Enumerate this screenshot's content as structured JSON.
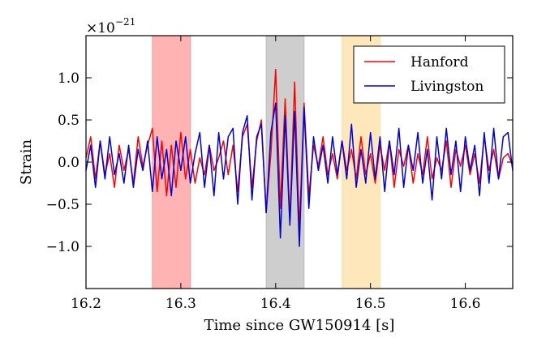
{
  "chart_data": {
    "type": "line",
    "title": "",
    "xlabel": "Time since GW150914 [s]",
    "ylabel": "Strain",
    "offset_label": "×10",
    "offset_exponent": "−21",
    "xlim": [
      16.2,
      16.65
    ],
    "ylim": [
      -1.5,
      1.5
    ],
    "xticks": [
      16.2,
      16.3,
      16.4,
      16.5,
      16.6
    ],
    "xtick_labels": [
      "16.2",
      "16.3",
      "16.4",
      "16.5",
      "16.6"
    ],
    "yticks": [
      -1.0,
      -0.5,
      0.0,
      0.5,
      1.0
    ],
    "ytick_labels": [
      "−1.0",
      "−0.5",
      "0.0",
      "0.5",
      "1.0"
    ],
    "grid": false,
    "legend_position": "top-right",
    "shaded_regions": [
      {
        "start": 16.27,
        "end": 16.31,
        "color": "#ff9999"
      },
      {
        "start": 16.39,
        "end": 16.43,
        "color": "#bdbdbd"
      },
      {
        "start": 16.47,
        "end": 16.51,
        "color": "#ffdfa6"
      }
    ],
    "series": [
      {
        "name": "Hanford",
        "color": "#ff0000",
        "x": [
          16.2,
          16.205,
          16.21,
          16.215,
          16.22,
          16.225,
          16.23,
          16.235,
          16.24,
          16.245,
          16.25,
          16.255,
          16.26,
          16.265,
          16.27,
          16.275,
          16.28,
          16.285,
          16.29,
          16.295,
          16.3,
          16.305,
          16.31,
          16.315,
          16.32,
          16.325,
          16.33,
          16.335,
          16.34,
          16.345,
          16.35,
          16.355,
          16.36,
          16.365,
          16.37,
          16.375,
          16.38,
          16.385,
          16.39,
          16.395,
          16.4,
          16.405,
          16.41,
          16.415,
          16.42,
          16.425,
          16.43,
          16.435,
          16.44,
          16.445,
          16.45,
          16.455,
          16.46,
          16.465,
          16.47,
          16.475,
          16.48,
          16.485,
          16.49,
          16.495,
          16.5,
          16.505,
          16.51,
          16.515,
          16.52,
          16.525,
          16.53,
          16.535,
          16.54,
          16.545,
          16.55,
          16.555,
          16.56,
          16.565,
          16.57,
          16.575,
          16.58,
          16.585,
          16.59,
          16.595,
          16.6,
          16.605,
          16.61,
          16.615,
          16.62,
          16.625,
          16.63,
          16.635,
          16.64,
          16.645,
          16.65
        ],
        "y": [
          0.05,
          0.3,
          -0.2,
          0.25,
          -0.15,
          0.1,
          -0.3,
          0.2,
          -0.1,
          0.15,
          -0.25,
          0.3,
          -0.05,
          0.2,
          0.4,
          -0.35,
          0.25,
          -0.4,
          0.2,
          -0.3,
          0.35,
          -0.2,
          0.15,
          -0.25,
          0.05,
          -0.15,
          0.2,
          -0.1,
          0.05,
          0.25,
          -0.15,
          0.2,
          -0.35,
          0.3,
          0.45,
          -0.3,
          0.25,
          0.5,
          -0.6,
          0.1,
          1.1,
          -0.55,
          0.75,
          -0.7,
          0.95,
          -0.8,
          0.7,
          -0.4,
          0.2,
          -0.05,
          0.3,
          -0.15,
          0.1,
          -0.2,
          0.25,
          -0.1,
          0.15,
          -0.2,
          0.3,
          -0.15,
          0.1,
          -0.25,
          0.2,
          -0.1,
          0.25,
          -0.3,
          0.15,
          -0.05,
          0.2,
          -0.25,
          0.1,
          -0.15,
          0.3,
          -0.2,
          0.05,
          -0.1,
          0.25,
          -0.3,
          0.15,
          -0.05,
          0.2,
          -0.15,
          0.1,
          -0.25,
          0.3,
          -0.1,
          0.15,
          -0.2,
          0.05,
          0.1,
          -0.05
        ]
      },
      {
        "name": "Livingston",
        "color": "#0000dd",
        "x": [
          16.2,
          16.205,
          16.21,
          16.215,
          16.22,
          16.225,
          16.23,
          16.235,
          16.24,
          16.245,
          16.25,
          16.255,
          16.26,
          16.265,
          16.27,
          16.275,
          16.28,
          16.285,
          16.29,
          16.295,
          16.3,
          16.305,
          16.31,
          16.315,
          16.32,
          16.325,
          16.33,
          16.335,
          16.34,
          16.345,
          16.35,
          16.355,
          16.36,
          16.365,
          16.37,
          16.375,
          16.38,
          16.385,
          16.39,
          16.395,
          16.4,
          16.405,
          16.41,
          16.415,
          16.42,
          16.425,
          16.43,
          16.435,
          16.44,
          16.445,
          16.45,
          16.455,
          16.46,
          16.465,
          16.47,
          16.475,
          16.48,
          16.485,
          16.49,
          16.495,
          16.5,
          16.505,
          16.51,
          16.515,
          16.52,
          16.525,
          16.53,
          16.535,
          16.54,
          16.545,
          16.55,
          16.555,
          16.56,
          16.565,
          16.57,
          16.575,
          16.58,
          16.585,
          16.59,
          16.595,
          16.6,
          16.605,
          16.61,
          16.615,
          16.62,
          16.625,
          16.63,
          16.635,
          16.64,
          16.645,
          16.65
        ],
        "y": [
          -0.1,
          0.2,
          -0.3,
          0.25,
          -0.2,
          0.3,
          -0.15,
          0.1,
          -0.25,
          0.2,
          -0.3,
          0.15,
          -0.1,
          0.25,
          -0.35,
          0.3,
          -0.2,
          0.15,
          -0.4,
          0.25,
          -0.1,
          0.3,
          -0.25,
          0.1,
          0.35,
          -0.3,
          0.2,
          -0.4,
          0.35,
          -0.2,
          0.3,
          0.4,
          -0.5,
          0.35,
          0.55,
          -0.45,
          0.3,
          0.45,
          -0.6,
          0.35,
          0.7,
          -0.9,
          0.55,
          -0.75,
          0.6,
          -1.0,
          0.65,
          -0.55,
          0.3,
          -0.1,
          0.2,
          -0.25,
          0.3,
          -0.15,
          0.25,
          -0.2,
          0.45,
          -0.3,
          0.15,
          -0.25,
          0.35,
          -0.2,
          0.3,
          -0.35,
          0.25,
          -0.15,
          0.4,
          -0.3,
          0.2,
          -0.1,
          0.35,
          -0.25,
          0.15,
          -0.45,
          0.3,
          -0.2,
          0.4,
          -0.15,
          0.25,
          -0.35,
          0.3,
          -0.1,
          0.2,
          -0.4,
          0.35,
          -0.25,
          0.4,
          -0.2,
          0.3,
          0.35,
          -0.1
        ]
      }
    ]
  }
}
